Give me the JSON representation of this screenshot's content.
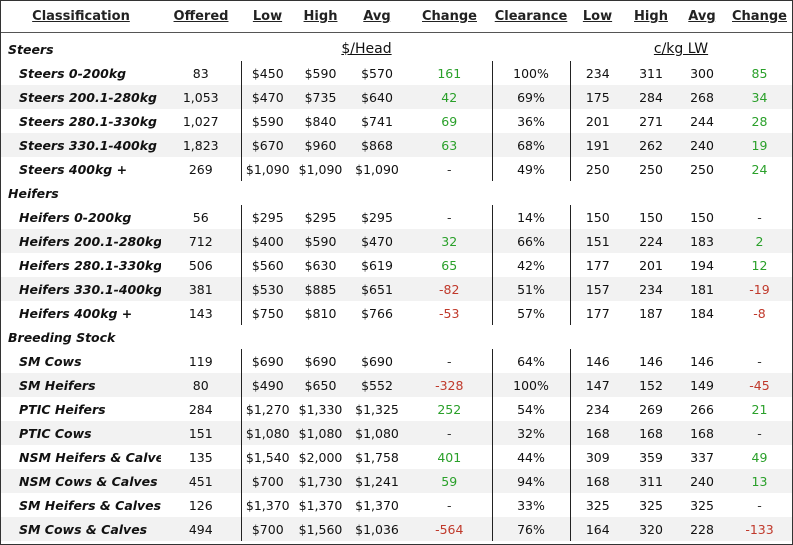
{
  "headers": {
    "classification": "Classification",
    "offered": "Offered",
    "low": "Low",
    "high": "High",
    "avg": "Avg",
    "change": "Change",
    "clearance": "Clearance",
    "low2": "Low",
    "high2": "High",
    "avg2": "Avg",
    "change2": "Change"
  },
  "units": {
    "head": "$/Head",
    "kg": "c/kg LW"
  },
  "sections": [
    {
      "name": "Steers",
      "rows": [
        {
          "label": "Steers 0-200kg",
          "offered": "83",
          "low": "$450",
          "high": "$590",
          "avg": "$570",
          "change": "161",
          "dir": "pos",
          "clearance": "100%",
          "low2": "234",
          "high2": "311",
          "avg2": "300",
          "change2": "85",
          "dir2": "pos"
        },
        {
          "label": "Steers 200.1-280kg",
          "offered": "1,053",
          "low": "$470",
          "high": "$735",
          "avg": "$640",
          "change": "42",
          "dir": "pos",
          "clearance": "69%",
          "low2": "175",
          "high2": "284",
          "avg2": "268",
          "change2": "34",
          "dir2": "pos"
        },
        {
          "label": "Steers 280.1-330kg",
          "offered": "1,027",
          "low": "$590",
          "high": "$840",
          "avg": "$741",
          "change": "69",
          "dir": "pos",
          "clearance": "36%",
          "low2": "201",
          "high2": "271",
          "avg2": "244",
          "change2": "28",
          "dir2": "pos"
        },
        {
          "label": "Steers 330.1-400kg",
          "offered": "1,823",
          "low": "$670",
          "high": "$960",
          "avg": "$868",
          "change": "63",
          "dir": "pos",
          "clearance": "68%",
          "low2": "191",
          "high2": "262",
          "avg2": "240",
          "change2": "19",
          "dir2": "pos"
        },
        {
          "label": "Steers 400kg +",
          "offered": "269",
          "low": "$1,090",
          "high": "$1,090",
          "avg": "$1,090",
          "change": "-",
          "dir": "neu",
          "clearance": "49%",
          "low2": "250",
          "high2": "250",
          "avg2": "250",
          "change2": "24",
          "dir2": "pos"
        }
      ]
    },
    {
      "name": "Heifers",
      "rows": [
        {
          "label": "Heifers 0-200kg",
          "offered": "56",
          "low": "$295",
          "high": "$295",
          "avg": "$295",
          "change": "-",
          "dir": "neu",
          "clearance": "14%",
          "low2": "150",
          "high2": "150",
          "avg2": "150",
          "change2": "-",
          "dir2": "neu"
        },
        {
          "label": "Heifers 200.1-280kg",
          "offered": "712",
          "low": "$400",
          "high": "$590",
          "avg": "$470",
          "change": "32",
          "dir": "pos",
          "clearance": "66%",
          "low2": "151",
          "high2": "224",
          "avg2": "183",
          "change2": "2",
          "dir2": "pos"
        },
        {
          "label": "Heifers 280.1-330kg",
          "offered": "506",
          "low": "$560",
          "high": "$630",
          "avg": "$619",
          "change": "65",
          "dir": "pos",
          "clearance": "42%",
          "low2": "177",
          "high2": "201",
          "avg2": "194",
          "change2": "12",
          "dir2": "pos"
        },
        {
          "label": "Heifers 330.1-400kg",
          "offered": "381",
          "low": "$530",
          "high": "$885",
          "avg": "$651",
          "change": "-82",
          "dir": "neg",
          "clearance": "51%",
          "low2": "157",
          "high2": "234",
          "avg2": "181",
          "change2": "-19",
          "dir2": "neg"
        },
        {
          "label": "Heifers 400kg +",
          "offered": "143",
          "low": "$750",
          "high": "$810",
          "avg": "$766",
          "change": "-53",
          "dir": "neg",
          "clearance": "57%",
          "low2": "177",
          "high2": "187",
          "avg2": "184",
          "change2": "-8",
          "dir2": "neg"
        }
      ]
    },
    {
      "name": "Breeding Stock",
      "rows": [
        {
          "label": "SM Cows",
          "offered": "119",
          "low": "$690",
          "high": "$690",
          "avg": "$690",
          "change": "-",
          "dir": "neu",
          "clearance": "64%",
          "low2": "146",
          "high2": "146",
          "avg2": "146",
          "change2": "-",
          "dir2": "neu"
        },
        {
          "label": "SM Heifers",
          "offered": "80",
          "low": "$490",
          "high": "$650",
          "avg": "$552",
          "change": "-328",
          "dir": "neg",
          "clearance": "100%",
          "low2": "147",
          "high2": "152",
          "avg2": "149",
          "change2": "-45",
          "dir2": "neg"
        },
        {
          "label": "PTIC Heifers",
          "offered": "284",
          "low": "$1,270",
          "high": "$1,330",
          "avg": "$1,325",
          "change": "252",
          "dir": "pos",
          "clearance": "54%",
          "low2": "234",
          "high2": "269",
          "avg2": "266",
          "change2": "21",
          "dir2": "pos"
        },
        {
          "label": "PTIC Cows",
          "offered": "151",
          "low": "$1,080",
          "high": "$1,080",
          "avg": "$1,080",
          "change": "-",
          "dir": "neu",
          "clearance": "32%",
          "low2": "168",
          "high2": "168",
          "avg2": "168",
          "change2": "-",
          "dir2": "neu"
        },
        {
          "label": "NSM Heifers & Calves",
          "offered": "135",
          "low": "$1,540",
          "high": "$2,000",
          "avg": "$1,758",
          "change": "401",
          "dir": "pos",
          "clearance": "44%",
          "low2": "309",
          "high2": "359",
          "avg2": "337",
          "change2": "49",
          "dir2": "pos"
        },
        {
          "label": "NSM Cows & Calves",
          "offered": "451",
          "low": "$700",
          "high": "$1,730",
          "avg": "$1,241",
          "change": "59",
          "dir": "pos",
          "clearance": "94%",
          "low2": "168",
          "high2": "311",
          "avg2": "240",
          "change2": "13",
          "dir2": "pos"
        },
        {
          "label": "SM Heifers & Calves",
          "offered": "126",
          "low": "$1,370",
          "high": "$1,370",
          "avg": "$1,370",
          "change": "-",
          "dir": "neu",
          "clearance": "33%",
          "low2": "325",
          "high2": "325",
          "avg2": "325",
          "change2": "-",
          "dir2": "neu"
        },
        {
          "label": "SM Cows & Calves",
          "offered": "494",
          "low": "$700",
          "high": "$1,560",
          "avg": "$1,036",
          "change": "-564",
          "dir": "neg",
          "clearance": "76%",
          "low2": "164",
          "high2": "320",
          "avg2": "228",
          "change2": "-133",
          "dir2": "neg"
        }
      ]
    }
  ],
  "colors": {
    "positive": "#2aa02a",
    "negative": "#c0392b",
    "stripe": "#f2f2f2"
  }
}
